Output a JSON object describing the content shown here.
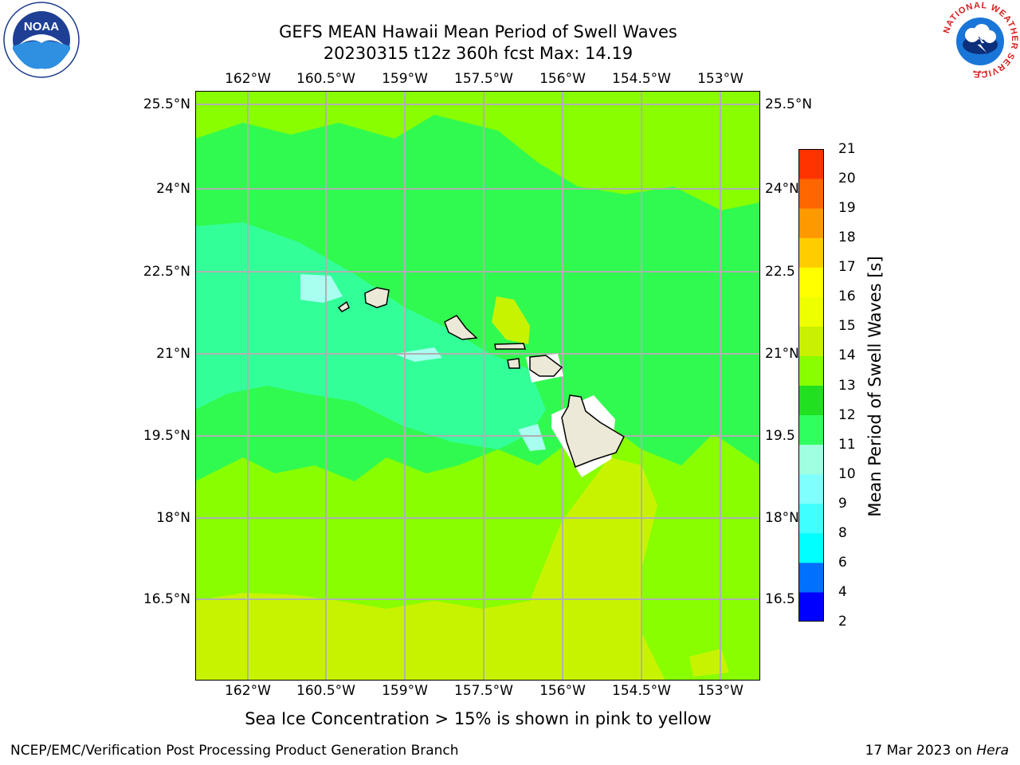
{
  "header": {
    "title_line1": "GEFS MEAN Hawaii Mean Period of Swell Waves",
    "title_line2": "20230315 t12z 360h fcst   Max: 14.19"
  },
  "logos": {
    "left": {
      "name": "noaa-logo",
      "text": "NOAA",
      "ring_text": "NATIONAL OCEANIC AND ATMOSPHERIC ADMINISTRATION · U.S. DEPARTMENT OF COMMERCE"
    },
    "right": {
      "name": "nws-logo",
      "ring_text": "NATIONAL WEATHER SERVICE"
    }
  },
  "map": {
    "lon_ticks": [
      "162°W",
      "160.5°W",
      "159°W",
      "157.5°W",
      "156°W",
      "154.5°W",
      "153°W"
    ],
    "lat_ticks_left": [
      "25.5°N",
      "24°N",
      "22.5°N",
      "21°N",
      "19.5°N",
      "18°N",
      "16.5°N"
    ],
    "lat_ticks_right": [
      "25.5°N",
      "24°N",
      "22.5",
      "21°N",
      "19.5",
      "18°N",
      "16.5"
    ],
    "background_color": "#88fe00",
    "land_color": "#ece9d8"
  },
  "colorbar": {
    "title": "Mean Period of Swell Waves [s]",
    "labels": [
      "2",
      "4",
      "6",
      "8",
      "9",
      "10",
      "11",
      "12",
      "13",
      "14",
      "15",
      "16",
      "17",
      "18",
      "19",
      "20",
      "21"
    ],
    "colors": [
      "#0000ff",
      "#0070ff",
      "#00ffff",
      "#40ffff",
      "#80ffff",
      "#a0ffe0",
      "#30ff60",
      "#20e020",
      "#88fe00",
      "#c8f000",
      "#eeff00",
      "#ffff00",
      "#ffcc00",
      "#ff9900",
      "#ff6600",
      "#ff3300",
      "#ff0000"
    ]
  },
  "footer": {
    "note": "Sea Ice Concentration > 15% is shown in pink to yellow",
    "credit": "NCEP/EMC/Verification Post Processing Product Generation Branch",
    "date": "17 Mar 2023 on ",
    "machine": "Hera"
  }
}
